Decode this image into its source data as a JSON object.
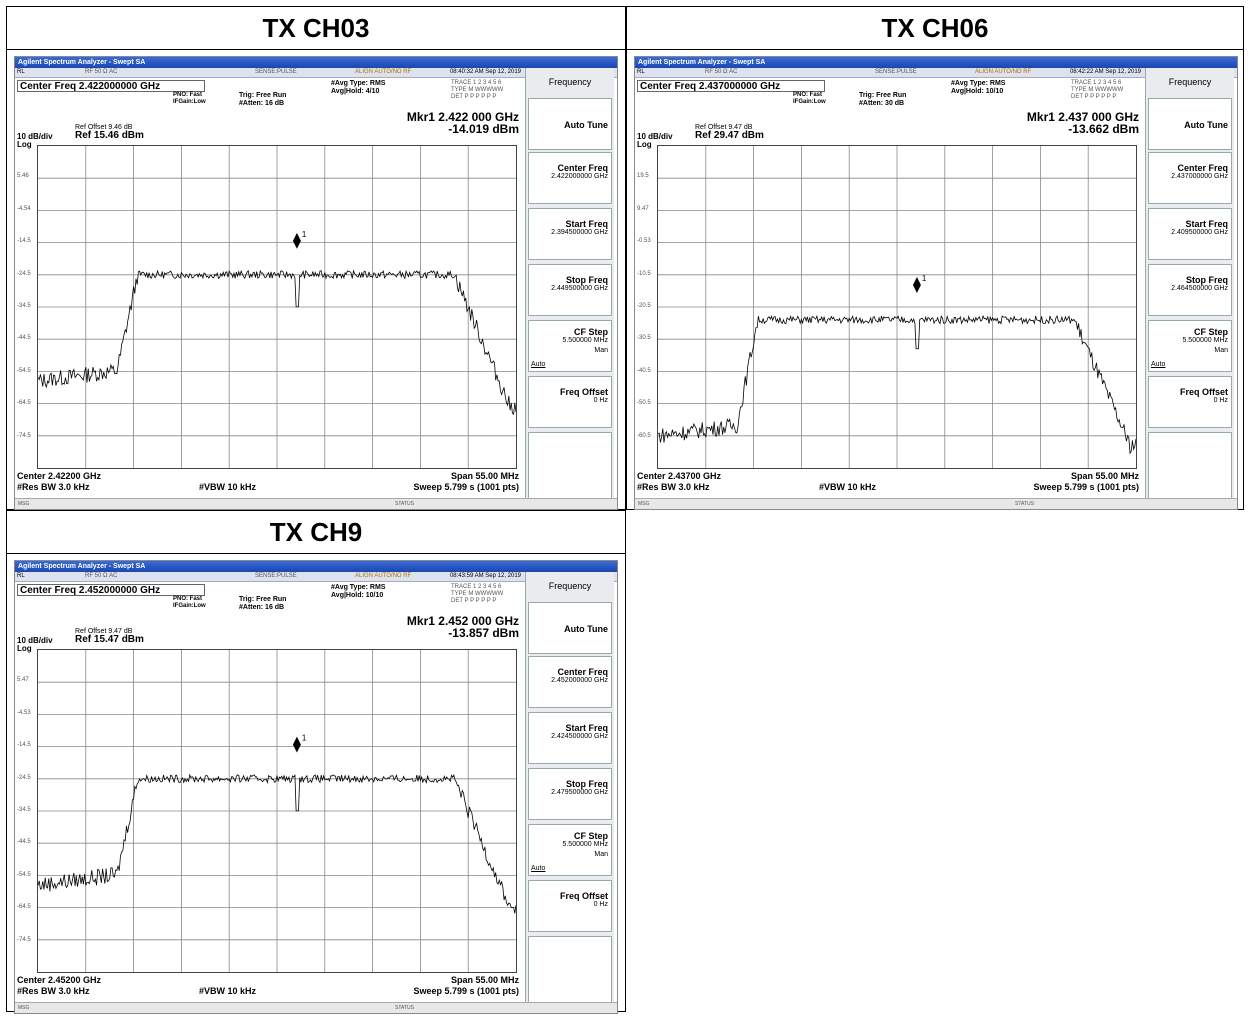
{
  "panels": [
    {
      "title": "TX CH03",
      "app_title": "Agilent Spectrum Analyzer - Swept SA",
      "status": {
        "rl": "RL",
        "rf": "RF   50 Ω  AC",
        "sense": "SENSE:PULSE",
        "align": "ALIGN AUTO/NO RF",
        "time": "08:40:32 AM Sep 12, 2019"
      },
      "center_freq": "Center Freq 2.422000000 GHz",
      "pno": "PNO: Fast",
      "ifgain": "IFGain:Low",
      "trig": "Trig: Free Run",
      "atten": "#Atten: 16 dB",
      "avg_type": "#Avg Type: RMS",
      "avg_hold": "Avg|Hold: 4/10",
      "trace": "TRACE 1 2 3 4 5 6",
      "trace_type": "TYPE M WWWWW",
      "trace_det": "DET P P P P P P",
      "mkr_freq": "Mkr1 2.422 000 GHz",
      "mkr_level": "-14.019 dBm",
      "ref_offset": "Ref Offset 9.46 dB",
      "scale": "10 dB/div",
      "log": "Log",
      "ref_level": "Ref 15.46 dBm",
      "y_labels": [
        "5.46",
        "-4.54",
        "-14.5",
        "-24.5",
        "-34.5",
        "-44.5",
        "-54.5",
        "-64.5",
        "-74.5"
      ],
      "center": "Center 2.42200 GHz",
      "rbw": "#Res BW 3.0 kHz",
      "vbw": "#VBW 10 kHz",
      "span": "Span 55.00 MHz",
      "sweep": "Sweep  5.799 s (1001 pts)",
      "msg": "MSG",
      "statusbar": "STATUS",
      "softkeys": {
        "head": "Frequency",
        "auto_tune": "Auto Tune",
        "center_freq": "Center Freq",
        "center_val": "2.422000000 GHz",
        "start_freq": "Start Freq",
        "start_val": "2.394500000 GHz",
        "stop_freq": "Stop Freq",
        "stop_val": "2.449500000 GHz",
        "cf_step": "CF Step",
        "cf_val": "5.500000 MHz",
        "auto": "Auto",
        "man": "Man",
        "freq_offset": "Freq Offset",
        "offset_val": "0 Hz"
      },
      "trace_shape": {
        "top_level": -24.5,
        "noise_level": -57.5,
        "right_floor": -65.5,
        "notch": -34.5,
        "marker": -14.0,
        "ref": 15.46
      }
    },
    {
      "title": "TX CH06",
      "app_title": "Agilent Spectrum Analyzer - Swept SA",
      "status": {
        "rl": "RL",
        "rf": "RF   50 Ω  AC",
        "sense": "SENSE:PULSE",
        "align": "ALIGN AUTO/NO RF",
        "time": "08:42:22 AM Sep 12, 2019"
      },
      "center_freq": "Center Freq 2.437000000 GHz",
      "pno": "PNO: Fast",
      "ifgain": "IFGain:Low",
      "trig": "Trig: Free Run",
      "atten": "#Atten: 30 dB",
      "avg_type": "#Avg Type: RMS",
      "avg_hold": "Avg|Hold: 10/10",
      "trace": "TRACE 1 2 3 4 5 6",
      "trace_type": "TYPE M WWWWW",
      "trace_det": "DET P P P P P P",
      "mkr_freq": "Mkr1 2.437 000 GHz",
      "mkr_level": "-13.662 dBm",
      "ref_offset": "Ref Offset 9.47 dB",
      "scale": "10 dB/div",
      "log": "Log",
      "ref_level": "Ref 29.47 dBm",
      "y_labels": [
        "19.5",
        "9.47",
        "-0.53",
        "-10.5",
        "-20.5",
        "-30.5",
        "-40.5",
        "-50.5",
        "-60.5"
      ],
      "center": "Center 2.43700 GHz",
      "rbw": "#Res BW 3.0 kHz",
      "vbw": "#VBW 10 kHz",
      "span": "Span 55.00 MHz",
      "sweep": "Sweep  5.799 s (1001 pts)",
      "msg": "MSG",
      "statusbar": "STATUS",
      "softkeys": {
        "head": "Frequency",
        "auto_tune": "Auto Tune",
        "center_freq": "Center Freq",
        "center_val": "2.437000000 GHz",
        "start_freq": "Start Freq",
        "start_val": "2.409500000 GHz",
        "stop_freq": "Stop Freq",
        "stop_val": "2.464500000 GHz",
        "cf_step": "CF Step",
        "cf_val": "5.500000 MHz",
        "auto": "Auto",
        "man": "Man",
        "freq_offset": "Freq Offset",
        "offset_val": "0 Hz"
      },
      "trace_shape": {
        "top_level": -24.5,
        "noise_level": -60.5,
        "right_floor": -63.5,
        "notch": -33.5,
        "marker": -13.7,
        "ref": 29.47
      }
    },
    {
      "title": "TX CH9",
      "app_title": "Agilent Spectrum Analyzer - Swept SA",
      "status": {
        "rl": "RL",
        "rf": "RF   50 Ω  AC",
        "sense": "SENSE:PULSE",
        "align": "ALIGN AUTO/NO RF",
        "time": "08:43:59 AM Sep 12, 2019"
      },
      "center_freq": "Center Freq 2.452000000 GHz",
      "pno": "PNO: Fast",
      "ifgain": "IFGain:Low",
      "trig": "Trig: Free Run",
      "atten": "#Atten: 16 dB",
      "avg_type": "#Avg Type: RMS",
      "avg_hold": "Avg|Hold: 10/10",
      "trace": "TRACE 1 2 3 4 5 6",
      "trace_type": "TYPE M WWWWW",
      "trace_det": "DET P P P P P P",
      "mkr_freq": "Mkr1 2.452 000 GHz",
      "mkr_level": "-13.857 dBm",
      "ref_offset": "Ref Offset 9.47 dB",
      "scale": "10 dB/div",
      "log": "Log",
      "ref_level": "Ref 15.47 dBm",
      "y_labels": [
        "5.47",
        "-4.53",
        "-14.5",
        "-24.5",
        "-34.5",
        "-44.5",
        "-54.5",
        "-64.5",
        "-74.5"
      ],
      "center": "Center 2.45200 GHz",
      "rbw": "#Res BW 3.0 kHz",
      "vbw": "#VBW 10 kHz",
      "span": "Span 55.00 MHz",
      "sweep": "Sweep  5.799 s (1001 pts)",
      "msg": "MSG",
      "statusbar": "STATUS",
      "softkeys": {
        "head": "Frequency",
        "auto_tune": "Auto Tune",
        "center_freq": "Center Freq",
        "center_val": "2.452000000 GHz",
        "start_freq": "Start Freq",
        "start_val": "2.424500000 GHz",
        "stop_freq": "Stop Freq",
        "stop_val": "2.479500000 GHz",
        "cf_step": "CF Step",
        "cf_val": "5.500000 MHz",
        "auto": "Auto",
        "man": "Man",
        "freq_offset": "Freq Offset",
        "offset_val": "0 Hz"
      },
      "trace_shape": {
        "top_level": -24.5,
        "noise_level": -57.5,
        "right_floor": -64.5,
        "notch": -34.5,
        "marker": -13.9,
        "ref": 15.47
      }
    }
  ]
}
